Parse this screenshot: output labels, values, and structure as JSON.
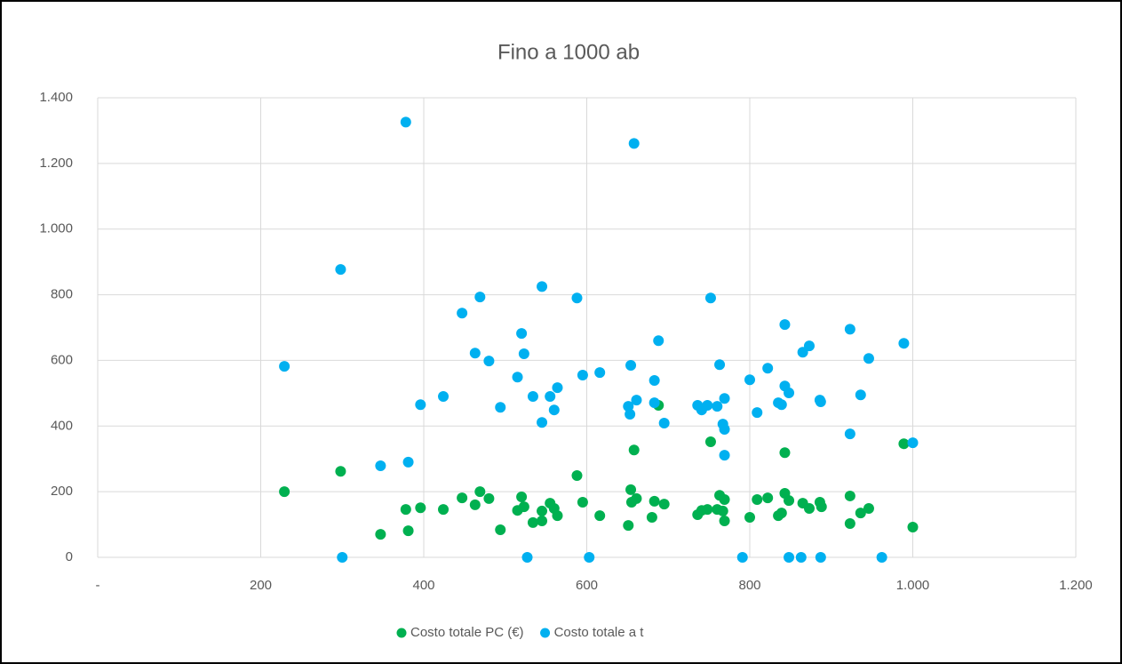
{
  "chart_data": {
    "type": "scatter",
    "title": "Fino a 1000 ab",
    "xlim": [
      0,
      1200
    ],
    "xticks": [
      {
        "value": 0,
        "label": "-"
      },
      200,
      400,
      600,
      800,
      {
        "value": 1000,
        "label": "1.000"
      },
      {
        "value": 1200,
        "label": "1.200"
      }
    ],
    "ylim": [
      0,
      1400
    ],
    "yticks": [
      0,
      200,
      400,
      600,
      800,
      {
        "value": 1000,
        "label": "1.000"
      },
      {
        "value": 1200,
        "label": "1.200"
      },
      {
        "value": 1400,
        "label": "1.400"
      }
    ],
    "grid": true,
    "legend": "bottom",
    "series": [
      {
        "name": "Costo totale PC (€)",
        "color": "#00b050",
        "x": [
          229,
          298,
          347,
          378,
          381,
          396,
          424,
          447,
          463,
          469,
          480,
          494,
          515,
          520,
          523,
          534,
          545,
          545,
          555,
          560,
          564,
          588,
          595,
          616,
          651,
          654,
          655,
          658,
          661,
          680,
          683,
          688,
          695,
          736,
          741,
          748,
          752,
          760,
          763,
          767,
          769,
          769,
          800,
          809,
          822,
          835,
          839,
          843,
          843,
          848,
          865,
          873,
          886,
          888,
          923,
          923,
          936,
          946,
          989,
          1000
        ],
        "values": [
          200,
          262,
          70,
          146,
          81,
          151,
          146,
          181,
          160,
          200,
          179,
          84,
          143,
          184,
          154,
          106,
          111,
          141,
          165,
          149,
          127,
          249,
          168,
          127,
          97,
          206,
          168,
          327,
          179,
          122,
          171,
          463,
          162,
          130,
          143,
          146,
          352,
          146,
          189,
          141,
          176,
          111,
          122,
          176,
          181,
          127,
          135,
          195,
          319,
          173,
          165,
          149,
          168,
          154,
          187,
          103,
          135,
          149,
          346,
          92
        ]
      },
      {
        "name": "Costo totale a t",
        "color": "#00b0f0",
        "x": [
          229,
          298,
          300,
          347,
          378,
          381,
          396,
          424,
          447,
          463,
          469,
          480,
          494,
          515,
          520,
          523,
          527,
          534,
          545,
          545,
          555,
          560,
          564,
          588,
          595,
          603,
          616,
          651,
          654,
          653,
          658,
          661,
          683,
          683,
          688,
          695,
          736,
          741,
          748,
          752,
          760,
          763,
          767,
          769,
          769,
          769,
          791,
          800,
          809,
          822,
          835,
          839,
          843,
          843,
          848,
          848,
          863,
          865,
          873,
          886,
          887,
          887,
          923,
          923,
          936,
          946,
          962,
          989,
          1000
        ],
        "values": [
          582,
          877,
          0,
          279,
          1326,
          290,
          465,
          490,
          744,
          622,
          793,
          598,
          457,
          549,
          682,
          620,
          0,
          490,
          411,
          825,
          490,
          449,
          517,
          790,
          555,
          0,
          563,
          460,
          585,
          436,
          1261,
          479,
          539,
          471,
          660,
          409,
          463,
          449,
          463,
          790,
          460,
          587,
          406,
          484,
          390,
          311,
          0,
          541,
          441,
          576,
          471,
          465,
          709,
          522,
          501,
          0,
          0,
          625,
          644,
          479,
          474,
          0,
          695,
          376,
          495,
          606,
          0,
          652,
          349
        ]
      }
    ]
  }
}
